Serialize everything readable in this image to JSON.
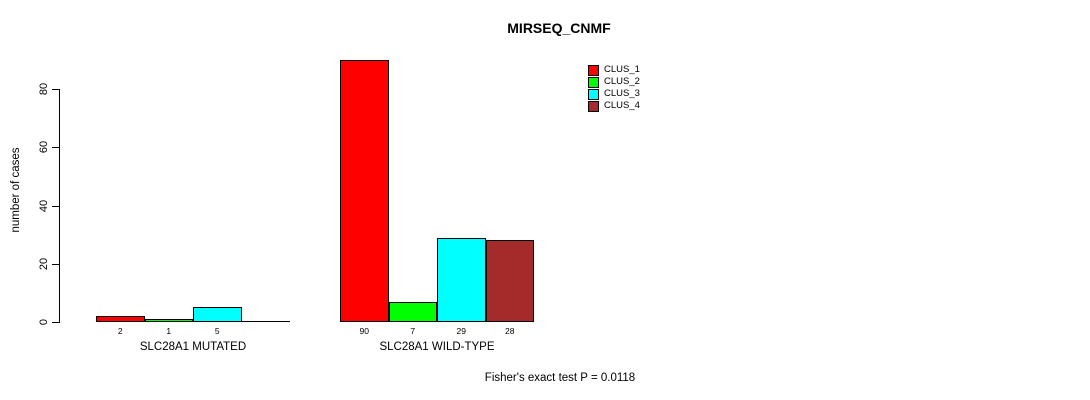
{
  "title": "MIRSEQ_CNMF",
  "annotation": "Fisher's exact test P = 0.0118",
  "chart_data": {
    "type": "bar",
    "title": "MIRSEQ_CNMF",
    "xlabel": "",
    "ylabel": "number of cases",
    "ylim": [
      0,
      90
    ],
    "yticks": [
      0,
      20,
      40,
      60,
      80
    ],
    "grid": false,
    "legend_position": "top-right",
    "categories": [
      "SLC28A1 MUTATED",
      "SLC28A1 WILD-TYPE"
    ],
    "series": [
      {
        "name": "CLUS_1",
        "color": "#FF0000",
        "values": [
          2,
          90
        ]
      },
      {
        "name": "CLUS_2",
        "color": "#00FF00",
        "values": [
          1,
          7
        ]
      },
      {
        "name": "CLUS_3",
        "color": "#00FFFF",
        "values": [
          5,
          29
        ]
      },
      {
        "name": "CLUS_4",
        "color": "#A52A2A",
        "values": [
          0,
          28
        ]
      }
    ],
    "bar_value_labels": [
      [
        "2",
        "1",
        "5",
        ""
      ],
      [
        "90",
        "7",
        "29",
        "28"
      ]
    ],
    "annotation": "Fisher's exact test P = 0.0118"
  }
}
